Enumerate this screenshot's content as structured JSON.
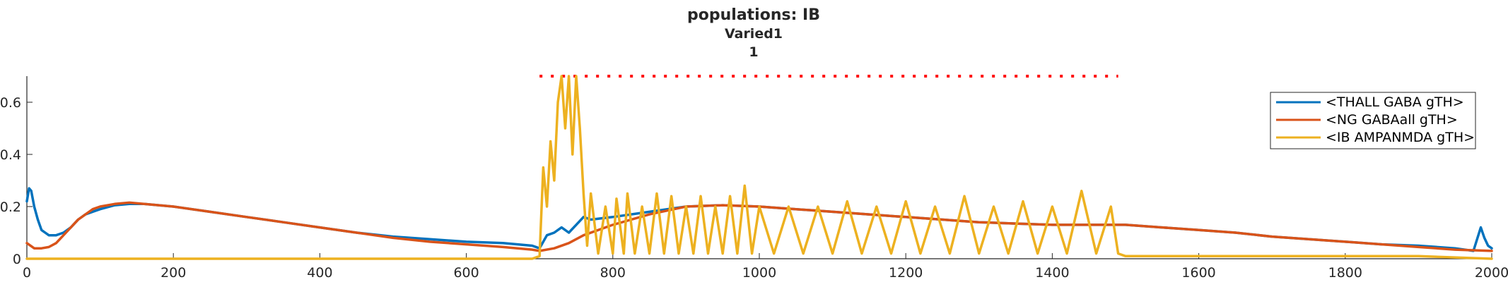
{
  "chart_data": {
    "type": "line",
    "title": "populations: IB",
    "subtitle_lines": [
      "Varied1",
      "1"
    ],
    "xlabel": "",
    "ylabel": "",
    "xlim": [
      0,
      2000
    ],
    "ylim": [
      0,
      0.7
    ],
    "x_ticks": [
      0,
      200,
      400,
      600,
      800,
      1000,
      1200,
      1400,
      1600,
      1800,
      2000
    ],
    "x_tick_labels": [
      "0",
      "200",
      "400",
      "600",
      "800",
      "1000",
      "1200",
      "1400",
      "1600",
      "1800",
      "2000"
    ],
    "y_ticks": [
      0,
      0.2,
      0.4,
      0.6
    ],
    "y_tick_labels": [
      "0",
      "0.2",
      "0.4",
      "0.6"
    ],
    "grid": false,
    "legend_position": "top-right",
    "stimulus_marker": {
      "x_start": 700,
      "x_end": 1490,
      "y": 0.7,
      "color": "#FF0000",
      "style": "dotted"
    },
    "series": [
      {
        "name": "<THALL GABA gTH>",
        "color": "#0072BD",
        "x": [
          0,
          3,
          6,
          10,
          15,
          20,
          25,
          30,
          40,
          50,
          60,
          70,
          80,
          90,
          100,
          120,
          140,
          160,
          180,
          200,
          250,
          300,
          350,
          400,
          450,
          500,
          550,
          600,
          650,
          690,
          700,
          710,
          720,
          730,
          740,
          750,
          760,
          770,
          800,
          850,
          900,
          950,
          1000,
          1050,
          1100,
          1150,
          1200,
          1250,
          1300,
          1350,
          1400,
          1450,
          1500,
          1550,
          1600,
          1650,
          1700,
          1750,
          1800,
          1850,
          1900,
          1950,
          1975,
          1985,
          1990,
          1995,
          2000
        ],
        "y": [
          0.22,
          0.27,
          0.26,
          0.2,
          0.15,
          0.11,
          0.1,
          0.09,
          0.09,
          0.1,
          0.12,
          0.15,
          0.17,
          0.18,
          0.19,
          0.205,
          0.21,
          0.21,
          0.205,
          0.2,
          0.18,
          0.16,
          0.14,
          0.12,
          0.1,
          0.085,
          0.075,
          0.065,
          0.06,
          0.05,
          0.04,
          0.09,
          0.1,
          0.12,
          0.1,
          0.13,
          0.16,
          0.15,
          0.16,
          0.18,
          0.2,
          0.205,
          0.2,
          0.19,
          0.18,
          0.17,
          0.16,
          0.15,
          0.14,
          0.135,
          0.13,
          0.13,
          0.13,
          0.12,
          0.11,
          0.1,
          0.085,
          0.075,
          0.065,
          0.055,
          0.05,
          0.04,
          0.03,
          0.12,
          0.08,
          0.05,
          0.04
        ]
      },
      {
        "name": "<NG GABAall gTH>",
        "color": "#D95319",
        "x": [
          0,
          10,
          20,
          30,
          40,
          50,
          60,
          70,
          80,
          90,
          100,
          120,
          140,
          160,
          180,
          200,
          250,
          300,
          350,
          400,
          450,
          500,
          550,
          600,
          650,
          690,
          700,
          720,
          740,
          760,
          780,
          800,
          850,
          900,
          950,
          1000,
          1050,
          1100,
          1150,
          1200,
          1250,
          1300,
          1350,
          1400,
          1450,
          1500,
          1550,
          1600,
          1650,
          1700,
          1750,
          1800,
          1850,
          1900,
          1950,
          2000
        ],
        "y": [
          0.06,
          0.04,
          0.04,
          0.045,
          0.06,
          0.09,
          0.12,
          0.15,
          0.17,
          0.19,
          0.2,
          0.21,
          0.215,
          0.21,
          0.205,
          0.2,
          0.18,
          0.16,
          0.14,
          0.12,
          0.1,
          0.08,
          0.065,
          0.055,
          0.045,
          0.035,
          0.03,
          0.04,
          0.06,
          0.09,
          0.11,
          0.13,
          0.17,
          0.2,
          0.205,
          0.2,
          0.19,
          0.18,
          0.17,
          0.16,
          0.15,
          0.14,
          0.135,
          0.13,
          0.13,
          0.13,
          0.12,
          0.11,
          0.1,
          0.085,
          0.075,
          0.065,
          0.055,
          0.045,
          0.035,
          0.03
        ]
      },
      {
        "name": "<IB AMPANMDA gTH>",
        "color": "#EDB120",
        "x": [
          0,
          100,
          200,
          300,
          400,
          500,
          600,
          650,
          690,
          700,
          705,
          710,
          715,
          720,
          725,
          730,
          735,
          740,
          745,
          750,
          755,
          760,
          765,
          770,
          780,
          790,
          800,
          805,
          815,
          820,
          830,
          840,
          850,
          860,
          870,
          880,
          890,
          900,
          910,
          920,
          930,
          940,
          950,
          960,
          970,
          980,
          990,
          1000,
          1020,
          1040,
          1060,
          1080,
          1100,
          1120,
          1140,
          1160,
          1180,
          1200,
          1220,
          1240,
          1260,
          1280,
          1300,
          1320,
          1340,
          1360,
          1380,
          1400,
          1420,
          1440,
          1460,
          1480,
          1490,
          1500,
          1600,
          1700,
          1800,
          1900,
          2000
        ],
        "y": [
          0,
          0,
          0,
          0,
          0,
          0,
          0,
          0,
          0,
          0.01,
          0.35,
          0.2,
          0.45,
          0.3,
          0.6,
          0.7,
          0.5,
          0.7,
          0.4,
          0.7,
          0.5,
          0.25,
          0.05,
          0.25,
          0.02,
          0.2,
          0.02,
          0.23,
          0.02,
          0.25,
          0.02,
          0.2,
          0.02,
          0.25,
          0.02,
          0.24,
          0.02,
          0.2,
          0.02,
          0.24,
          0.02,
          0.2,
          0.02,
          0.24,
          0.02,
          0.28,
          0.02,
          0.2,
          0.02,
          0.2,
          0.02,
          0.2,
          0.02,
          0.22,
          0.02,
          0.2,
          0.02,
          0.22,
          0.02,
          0.2,
          0.02,
          0.24,
          0.02,
          0.2,
          0.02,
          0.22,
          0.02,
          0.2,
          0.02,
          0.26,
          0.02,
          0.2,
          0.02,
          0.01,
          0.01,
          0.01,
          0.01,
          0.01,
          0
        ]
      }
    ]
  }
}
